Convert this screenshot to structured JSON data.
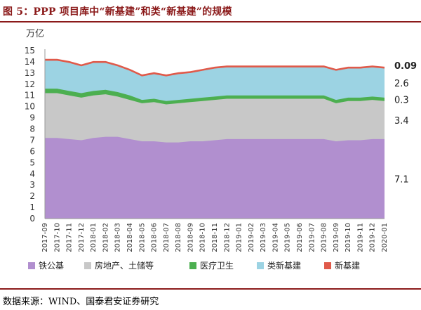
{
  "header": {
    "title": "图 5：PPP 项目库中“新基建”和类“新基建”的规模"
  },
  "footer": {
    "source": "数据来源：WIND、国泰君安证券研究"
  },
  "chart_data": {
    "type": "area",
    "stacked": true,
    "unit_label": "万亿",
    "ylim": [
      0,
      15
    ],
    "yticks": [
      0,
      1,
      2,
      3,
      4,
      5,
      6,
      7,
      8,
      9,
      10,
      11,
      12,
      13,
      14,
      15
    ],
    "grid": false,
    "legend_position": "bottom",
    "categories": [
      "2017-09",
      "2017-10",
      "2017-11",
      "2017-12",
      "2018-01",
      "2018-02",
      "2018-03",
      "2018-04",
      "2018-05",
      "2018-06",
      "2018-07",
      "2018-08",
      "2018-09",
      "2018-10",
      "2018-11",
      "2018-12",
      "2019-01",
      "2019-02",
      "2019-03",
      "2019-04",
      "2019-05",
      "2019-06",
      "2019-07",
      "2019-08",
      "2019-09",
      "2019-10",
      "2019-11",
      "2019-12",
      "2020-01"
    ],
    "series": [
      {
        "name": "铁公基",
        "color": "#B18FCF",
        "values": [
          7.2,
          7.2,
          7.1,
          7.0,
          7.2,
          7.3,
          7.3,
          7.1,
          6.9,
          6.9,
          6.8,
          6.8,
          6.9,
          6.9,
          7.0,
          7.1,
          7.1,
          7.1,
          7.1,
          7.1,
          7.1,
          7.1,
          7.1,
          7.1,
          6.9,
          7.0,
          7.0,
          7.1,
          7.1
        ]
      },
      {
        "name": "房地产、土储等",
        "color": "#C8C8C8",
        "values": [
          4.0,
          4.0,
          3.9,
          3.8,
          3.8,
          3.8,
          3.6,
          3.5,
          3.4,
          3.5,
          3.4,
          3.5,
          3.5,
          3.6,
          3.6,
          3.6,
          3.6,
          3.6,
          3.6,
          3.6,
          3.6,
          3.6,
          3.6,
          3.6,
          3.4,
          3.5,
          3.5,
          3.5,
          3.4
        ]
      },
      {
        "name": "医疗卫生",
        "color": "#4CAF50",
        "values": [
          0.4,
          0.4,
          0.4,
          0.4,
          0.4,
          0.4,
          0.4,
          0.4,
          0.3,
          0.3,
          0.3,
          0.3,
          0.3,
          0.3,
          0.3,
          0.3,
          0.3,
          0.3,
          0.3,
          0.3,
          0.3,
          0.3,
          0.3,
          0.3,
          0.3,
          0.3,
          0.3,
          0.3,
          0.3
        ]
      },
      {
        "name": "类新基建",
        "color": "#9CD3E3",
        "values": [
          2.5,
          2.5,
          2.5,
          2.4,
          2.5,
          2.4,
          2.3,
          2.2,
          2.1,
          2.2,
          2.2,
          2.3,
          2.3,
          2.4,
          2.5,
          2.5,
          2.5,
          2.5,
          2.5,
          2.5,
          2.5,
          2.5,
          2.5,
          2.5,
          2.6,
          2.6,
          2.6,
          2.6,
          2.6
        ]
      },
      {
        "name": "新基建",
        "color": "#E05A4A",
        "values": [
          0.09,
          0.09,
          0.09,
          0.09,
          0.09,
          0.09,
          0.09,
          0.09,
          0.09,
          0.09,
          0.09,
          0.09,
          0.09,
          0.09,
          0.09,
          0.09,
          0.09,
          0.09,
          0.09,
          0.09,
          0.09,
          0.09,
          0.09,
          0.09,
          0.09,
          0.09,
          0.09,
          0.09,
          0.09
        ]
      }
    ],
    "end_labels": [
      {
        "series": "新基建",
        "text": "0.09",
        "color": "#E05A4A"
      },
      {
        "series": "类新基建",
        "text": "2.6",
        "color": "#222222"
      },
      {
        "series": "医疗卫生",
        "text": "0.3",
        "color": "#222222"
      },
      {
        "series": "房地产、土储等",
        "text": "3.4",
        "color": "#222222"
      },
      {
        "series": "铁公基",
        "text": "7.1",
        "color": "#222222"
      }
    ]
  }
}
